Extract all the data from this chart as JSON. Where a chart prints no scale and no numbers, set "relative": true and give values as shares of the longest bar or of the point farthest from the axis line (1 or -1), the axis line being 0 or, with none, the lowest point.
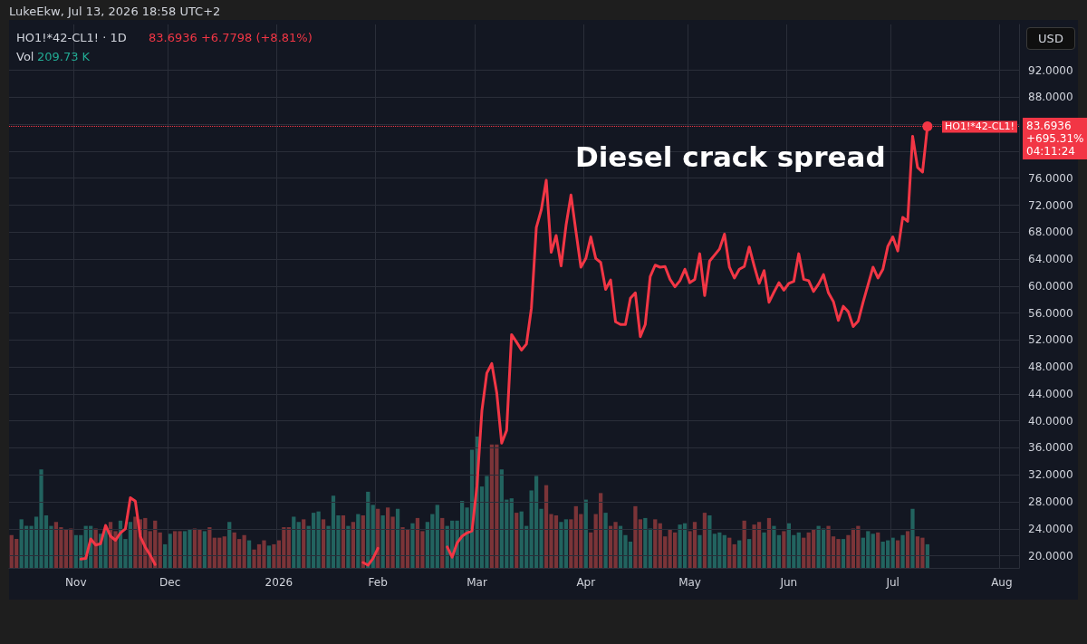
{
  "chart_data": [
    {
      "type": "line",
      "title": "Diesel crack spread",
      "annotations": [
        "LukeEkw, Jul 13, 2026 18:58 UTC+2",
        "HO1!*42-CL1! · 1D",
        "83.6936  +6.7798 (+8.81%)",
        "Vol",
        "209.73 K",
        "83.6936",
        "+695.31%",
        "04:11:24",
        "USD"
      ],
      "categories": [
        null,
        null,
        null,
        null,
        null,
        null,
        null,
        null,
        null,
        null,
        null,
        null,
        null,
        "Nov",
        null,
        null,
        null,
        null,
        null,
        null,
        null,
        null,
        null,
        null,
        null,
        null,
        null,
        null,
        null,
        null,
        null,
        null,
        "Dec",
        null,
        null,
        null,
        null,
        null,
        null,
        null,
        null,
        null,
        null,
        null,
        null,
        null,
        null,
        null,
        null,
        null,
        null,
        null,
        null,
        null,
        "2026",
        null,
        null,
        null,
        null,
        null,
        null,
        null,
        null,
        null,
        null,
        null,
        null,
        null,
        null,
        null,
        null,
        null,
        null,
        null,
        "Feb",
        null,
        null,
        null,
        null,
        null,
        null,
        null,
        null,
        null,
        null,
        null,
        null,
        null,
        null,
        null,
        null,
        null,
        null,
        null,
        "Mar",
        null,
        null,
        null,
        null,
        null,
        null,
        null,
        null,
        null,
        null,
        null,
        null,
        null,
        null,
        null,
        null,
        null,
        null,
        null,
        null,
        null,
        "Apr",
        null,
        null,
        null,
        null,
        null,
        null,
        null,
        null,
        null,
        null,
        null,
        null,
        null,
        null,
        null,
        null,
        null,
        null,
        null,
        null,
        "May",
        null,
        null,
        null,
        null,
        null,
        null,
        null,
        null,
        null,
        null,
        null,
        null,
        null,
        null,
        null,
        null,
        null,
        null,
        null,
        "Jun",
        null,
        null,
        null,
        null,
        null,
        null,
        null,
        null,
        null,
        null,
        null,
        null,
        null,
        null,
        null,
        null,
        null,
        null,
        null,
        null,
        "Jul",
        null,
        null,
        null,
        null,
        null,
        null,
        null,
        null,
        null,
        null,
        null,
        null,
        null,
        null,
        null,
        null,
        null,
        null,
        null,
        null,
        null,
        "Aug",
        null,
        null,
        null
      ],
      "color": "#f23645",
      "values": [
        null,
        null,
        null,
        null,
        null,
        null,
        null,
        null,
        null,
        null,
        null,
        null,
        null,
        null,
        19.5,
        19.6,
        22.5,
        21.6,
        21.8,
        24.5,
        22.9,
        22.3,
        23.4,
        24.0,
        28.6,
        28.1,
        22.9,
        21.3,
        20.1,
        18.7,
        null,
        null,
        null,
        null,
        null,
        null,
        null,
        null,
        null,
        null,
        null,
        null,
        null,
        null,
        null,
        null,
        null,
        null,
        null,
        null,
        null,
        null,
        null,
        null,
        null,
        null,
        null,
        null,
        null,
        null,
        null,
        null,
        null,
        null,
        null,
        null,
        null,
        null,
        null,
        null,
        null,
        19.0,
        18.6,
        19.6,
        21.1,
        null,
        null,
        null,
        null,
        null,
        null,
        null,
        null,
        null,
        null,
        null,
        null,
        null,
        21.3,
        19.8,
        21.9,
        22.9,
        23.4,
        23.7,
        30.3,
        41.5,
        47.1,
        48.5,
        44.2,
        36.7,
        38.6,
        52.8,
        51.7,
        50.5,
        51.4,
        56.7,
        68.7,
        71.3,
        75.7,
        65.0,
        67.5,
        63.0,
        69.0,
        73.5,
        68.1,
        62.8,
        64.1,
        67.3,
        64.1,
        63.5,
        59.5,
        60.9,
        54.7,
        54.3,
        54.3,
        58.2,
        59.0,
        52.5,
        54.3,
        61.4,
        63.1,
        62.8,
        62.9,
        61.0,
        59.9,
        60.8,
        62.5,
        60.5,
        61.0,
        64.8,
        58.6,
        63.7,
        64.6,
        65.5,
        67.7,
        62.8,
        61.2,
        62.5,
        62.9,
        65.8,
        63.0,
        60.4,
        62.3,
        57.6,
        59.1,
        60.5,
        59.4,
        60.4,
        60.7,
        64.8,
        61.0,
        60.8,
        59.2,
        60.3,
        61.7,
        59.0,
        57.7,
        54.9,
        57.0,
        56.2,
        54.0,
        54.8,
        57.6,
        60.2,
        62.8,
        61.2,
        62.5,
        65.9,
        67.3,
        65.2,
        70.2,
        69.6,
        82.2,
        77.6,
        76.9,
        83.6936,
        null,
        null,
        null,
        null,
        null,
        null,
        null,
        null,
        null,
        null,
        null,
        null,
        null,
        null,
        null,
        null,
        null,
        null
      ],
      "ylim": [
        18.2,
        98.8
      ],
      "yticks": [
        {
          "value": 20,
          "label": "20.0000"
        },
        {
          "value": 24,
          "label": "24.0000"
        },
        {
          "value": 28,
          "label": "28.0000"
        },
        {
          "value": 32,
          "label": "32.0000"
        },
        {
          "value": 36,
          "label": "36.0000"
        },
        {
          "value": 40,
          "label": "40.0000"
        },
        {
          "value": 44,
          "label": "44.0000"
        },
        {
          "value": 48,
          "label": "48.0000"
        },
        {
          "value": 52,
          "label": "52.0000"
        },
        {
          "value": 56,
          "label": "56.0000"
        },
        {
          "value": 60,
          "label": "60.0000"
        },
        {
          "value": 64,
          "label": "64.0000"
        },
        {
          "value": 68,
          "label": "68.0000"
        },
        {
          "value": 72,
          "label": "72.0000"
        },
        {
          "value": 76,
          "label": "76.0000"
        },
        {
          "value": 80,
          "label": null
        },
        {
          "value": 84,
          "label": null
        },
        {
          "value": 88,
          "label": "88.0000"
        },
        {
          "value": 92,
          "label": "92.0000"
        }
      ],
      "ref_lines": [
        {
          "axis": "y",
          "value": 83.6936,
          "label": "HO1!*42-CL1!",
          "color": "#f23645",
          "line_style": "dotted"
        }
      ],
      "grid": true,
      "line_style": "solid"
    },
    {
      "type": "bar",
      "relative": true,
      "categories": [
        null,
        null,
        null,
        null,
        null,
        null,
        null,
        null,
        null,
        null,
        null,
        null,
        null,
        null,
        null,
        null,
        null,
        null,
        null,
        null,
        null,
        null,
        null,
        null,
        null,
        null,
        null,
        null,
        null,
        null,
        null,
        null,
        null,
        null,
        null,
        null,
        null,
        null,
        null,
        null,
        null,
        null,
        null,
        null,
        null,
        null,
        null,
        null,
        null,
        null,
        null,
        null,
        null,
        null,
        null,
        null,
        null,
        null,
        null,
        null,
        null,
        null,
        null,
        null,
        null,
        null,
        null,
        null,
        null,
        null,
        null,
        null,
        null,
        null,
        null,
        null,
        null,
        null,
        null,
        null,
        null,
        null,
        null,
        null,
        null,
        null,
        null,
        null,
        null,
        null,
        null,
        null,
        null,
        null,
        null,
        null,
        null,
        null,
        null,
        null,
        null,
        null,
        null,
        null,
        null,
        null,
        null,
        null,
        null,
        null,
        null,
        null,
        null,
        null,
        null,
        null,
        null,
        null,
        null,
        null,
        null,
        null,
        null,
        null,
        null,
        null,
        null,
        null,
        null,
        null,
        null,
        null,
        null,
        null,
        null,
        null,
        null,
        null,
        null,
        null,
        null,
        null,
        null,
        null,
        null,
        null,
        null,
        null,
        null,
        null,
        null,
        null,
        null,
        null,
        null,
        null,
        null,
        null,
        null,
        null,
        null,
        null,
        null,
        null,
        null,
        null,
        null,
        null,
        null,
        null,
        null,
        null,
        null,
        null,
        null,
        null,
        null,
        null,
        null,
        null,
        null,
        null,
        null,
        null,
        null,
        null,
        null,
        null,
        null,
        null,
        null,
        null,
        null,
        null,
        null,
        null,
        null,
        null,
        null,
        null,
        null,
        null,
        null,
        null
      ],
      "colors": [
        "#7b3438",
        "#7b3438",
        "#22635f",
        "#22635f",
        "#22635f",
        "#22635f",
        "#22635f",
        "#22635f",
        "#22635f",
        "#7b3438",
        "#7b3438",
        "#7b3438",
        "#7b3438",
        "#22635f",
        "#22635f",
        "#22635f",
        "#22635f",
        "#7b3438",
        "#22635f",
        "#22635f",
        "#7b3438",
        "#7b3438",
        "#22635f",
        "#22635f",
        "#22635f",
        "#7b3438",
        "#7b3438",
        "#7b3438",
        "#7b3438",
        "#7b3438",
        "#7b3438",
        "#22635f",
        "#22635f",
        "#7b3438",
        "#7b3438",
        "#22635f",
        "#22635f",
        "#7b3438",
        "#7b3438",
        "#22635f",
        "#7b3438",
        "#7b3438",
        "#7b3438",
        "#7b3438",
        "#22635f",
        "#7b3438",
        "#7b3438",
        "#7b3438",
        "#22635f",
        "#7b3438",
        "#7b3438",
        "#7b3438",
        "#22635f",
        "#7b3438",
        "#7b3438",
        "#7b3438",
        "#7b3438",
        "#22635f",
        "#22635f",
        "#7b3438",
        "#22635f",
        "#22635f",
        "#22635f",
        "#7b3438",
        "#22635f",
        "#22635f",
        "#22635f",
        "#7b3438",
        "#22635f",
        "#7b3438",
        "#22635f",
        "#7b3438",
        "#22635f",
        "#22635f",
        "#7b3438",
        "#22635f",
        "#7b3438",
        "#7b3438",
        "#22635f",
        "#7b3438",
        "#7b3438",
        "#22635f",
        "#7b3438",
        "#7b3438",
        "#22635f",
        "#22635f",
        "#22635f",
        "#7b3438",
        "#22635f",
        "#22635f",
        "#22635f",
        "#22635f",
        "#22635f",
        "#22635f",
        "#22635f",
        "#22635f",
        "#22635f",
        "#7b3438",
        "#7b3438",
        "#22635f",
        "#22635f",
        "#22635f",
        "#7b3438",
        "#22635f",
        "#22635f",
        "#22635f",
        "#22635f",
        "#22635f",
        "#7b3438",
        "#7b3438",
        "#7b3438",
        "#22635f",
        "#22635f",
        "#7b3438",
        "#7b3438",
        "#7b3438",
        "#22635f",
        "#7b3438",
        "#7b3438",
        "#7b3438",
        "#22635f",
        "#7b3438",
        "#7b3438",
        "#22635f",
        "#22635f",
        "#22635f",
        "#7b3438",
        "#7b3438",
        "#22635f",
        "#22635f",
        "#7b3438",
        "#7b3438",
        "#7b3438",
        "#7b3438",
        "#7b3438",
        "#22635f",
        "#22635f",
        "#7b3438",
        "#7b3438",
        "#22635f",
        "#7b3438",
        "#22635f",
        "#22635f",
        "#22635f",
        "#22635f",
        "#7b3438",
        "#7b3438",
        "#22635f",
        "#7b3438",
        "#22635f",
        "#7b3438",
        "#7b3438",
        "#22635f",
        "#7b3438",
        "#22635f",
        "#22635f",
        "#7b3438",
        "#22635f",
        "#22635f",
        "#22635f",
        "#7b3438",
        "#7b3438",
        "#7b3438",
        "#22635f",
        "#22635f",
        "#7b3438",
        "#7b3438",
        "#7b3438",
        "#22635f",
        "#7b3438",
        "#7b3438",
        "#7b3438",
        "#22635f",
        "#22635f",
        "#22635f",
        "#7b3438",
        "#22635f",
        "#22635f",
        "#22635f",
        "#7b3438",
        "#22635f",
        "#7b3438",
        "#22635f",
        "#7b3438",
        "#7b3438",
        "#22635f",
        null,
        null,
        null,
        null,
        null,
        null,
        null,
        null,
        null,
        null,
        null,
        null,
        null,
        null,
        null,
        null,
        null,
        null
      ],
      "values": [
        0.25,
        0.22,
        0.37,
        0.32,
        0.32,
        0.39,
        0.75,
        0.4,
        0.32,
        0.35,
        0.31,
        0.29,
        0.3,
        0.25,
        0.25,
        0.32,
        0.32,
        0.3,
        0.26,
        0.29,
        0.35,
        0.28,
        0.36,
        0.22,
        0.35,
        0.39,
        0.37,
        0.38,
        0.28,
        0.36,
        0.27,
        0.18,
        0.26,
        0.28,
        0.28,
        0.28,
        0.29,
        0.3,
        0.29,
        0.28,
        0.31,
        0.23,
        0.23,
        0.24,
        0.35,
        0.27,
        0.22,
        0.25,
        0.21,
        0.14,
        0.18,
        0.21,
        0.17,
        0.18,
        0.21,
        0.31,
        0.31,
        0.39,
        0.35,
        0.37,
        0.32,
        0.42,
        0.43,
        0.37,
        0.32,
        0.55,
        0.4,
        0.4,
        0.32,
        0.35,
        0.41,
        0.4,
        0.58,
        0.48,
        0.45,
        0.4,
        0.46,
        0.39,
        0.45,
        0.31,
        0.29,
        0.34,
        0.38,
        0.28,
        0.35,
        0.41,
        0.48,
        0.38,
        0.32,
        0.36,
        0.36,
        0.51,
        0.46,
        0.9,
        1,
        0.62,
        0.7,
        0.94,
        0.94,
        0.75,
        0.52,
        0.53,
        0.42,
        0.43,
        0.32,
        0.59,
        0.7,
        0.45,
        0.63,
        0.41,
        0.4,
        0.35,
        0.37,
        0.37,
        0.47,
        0.41,
        0.52,
        0.27,
        0.41,
        0.57,
        0.42,
        0.32,
        0.35,
        0.32,
        0.25,
        0.2,
        0.47,
        0.37,
        0.38,
        0.3,
        0.37,
        0.34,
        0.24,
        0.29,
        0.27,
        0.33,
        0.34,
        0.28,
        0.35,
        0.25,
        0.42,
        0.4,
        0.26,
        0.27,
        0.25,
        0.23,
        0.18,
        0.21,
        0.36,
        0.22,
        0.33,
        0.35,
        0.27,
        0.38,
        0.32,
        0.25,
        0.28,
        0.34,
        0.25,
        0.27,
        0.23,
        0.27,
        0.29,
        0.32,
        0.3,
        0.32,
        0.24,
        0.22,
        0.22,
        0.25,
        0.3,
        0.32,
        0.23,
        0.28,
        0.26,
        0.27,
        0.2,
        0.21,
        0.23,
        0.21,
        0.25,
        0.28,
        0.45,
        0.24,
        0.23,
        0.18,
        null,
        null,
        null,
        null,
        null,
        null,
        null,
        null,
        null,
        null,
        null,
        null,
        null,
        null,
        null,
        null,
        null,
        null
      ]
    }
  ]
}
